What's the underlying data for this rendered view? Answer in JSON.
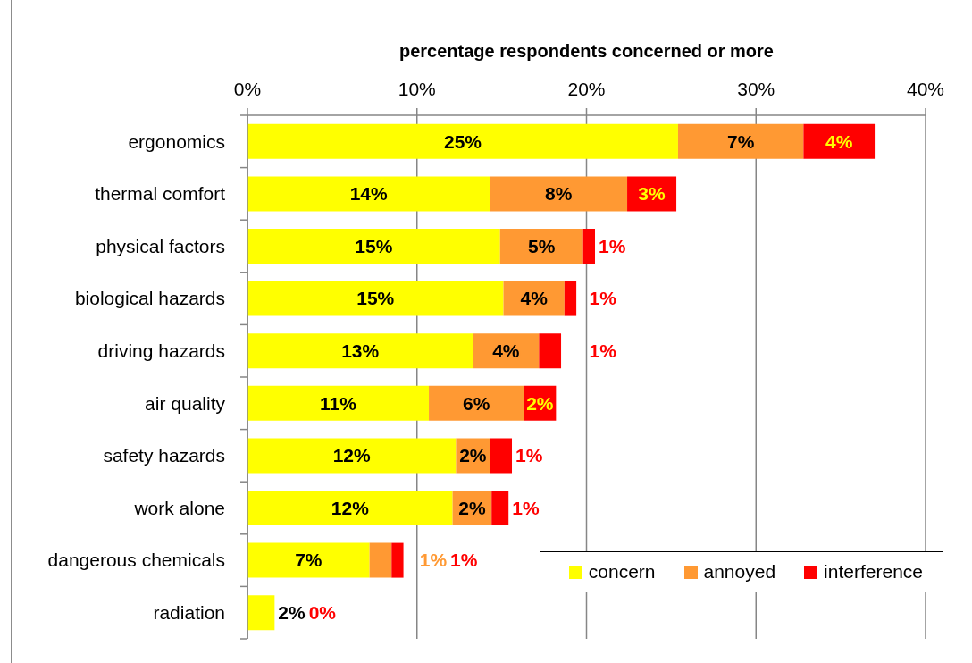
{
  "chart_data": {
    "type": "bar",
    "orientation": "horizontal",
    "stacked": true,
    "xlabel": "percentage respondents concerned or more",
    "categories": [
      "ergonomics",
      "thermal comfort",
      "physical factors",
      "biological hazards",
      "driving hazards",
      "air quality",
      "safety hazards",
      "work alone",
      "dangerous chemicals",
      "radiation"
    ],
    "series": [
      {
        "name": "concern",
        "color": "#ffff00",
        "values": [
          25.4,
          14.3,
          14.9,
          15.1,
          13.3,
          10.7,
          12.3,
          12.1,
          7.2,
          1.6
        ],
        "value_labels": [
          "25%",
          "14%",
          "15%",
          "15%",
          "13%",
          "11%",
          "12%",
          "12%",
          "7%",
          "2%"
        ]
      },
      {
        "name": "annoyed",
        "color": "#ff9933",
        "values": [
          7.4,
          8.1,
          4.9,
          3.6,
          3.9,
          5.6,
          2.0,
          2.3,
          1.3,
          0
        ],
        "value_labels": [
          "7%",
          "8%",
          "5%",
          "4%",
          "4%",
          "6%",
          "2%",
          "2%",
          "1%",
          null
        ]
      },
      {
        "name": "interference",
        "color": "#ff0000",
        "values": [
          4.2,
          2.9,
          0.7,
          0.7,
          1.3,
          1.9,
          1.3,
          1.0,
          0.7,
          0
        ],
        "value_labels": [
          "4%",
          "3%",
          "1%",
          "1%",
          "1%",
          "2%",
          "1%",
          "1%",
          "1%",
          "0%"
        ]
      }
    ],
    "xlim": [
      0,
      40
    ],
    "xticks": [
      {
        "value": 0,
        "label": "0%"
      },
      {
        "value": 10,
        "label": "10%"
      },
      {
        "value": 20,
        "label": "20%"
      },
      {
        "value": 30,
        "label": "30%"
      },
      {
        "value": 40,
        "label": "40%"
      }
    ],
    "grid": "x",
    "legend": "bottom right"
  }
}
